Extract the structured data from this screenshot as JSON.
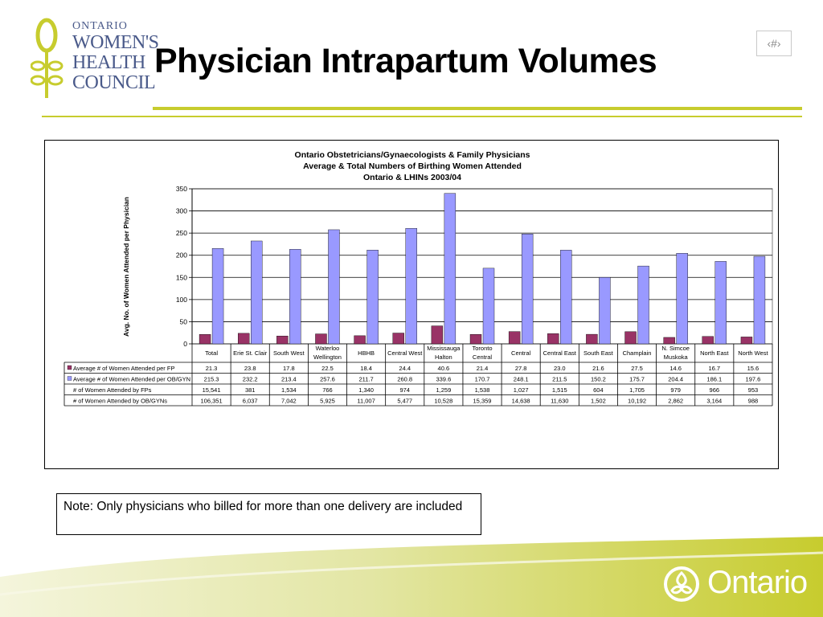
{
  "slide": {
    "title": "Physician Intrapartum Volumes",
    "page_number": "‹#›",
    "note": "Note:  Only physicians who billed for more than one delivery are included"
  },
  "logo": {
    "line1": "ONTARIO",
    "line2": "WOMEN'S",
    "line3": "HEALTH",
    "line4": "COUNCIL",
    "color": "#c7cc2e"
  },
  "footer": {
    "brand": "Ontario",
    "band_color": "#c7cc2e"
  },
  "chart_data": {
    "type": "bar",
    "title": [
      "Ontario Obstetricians/Gynaecologists & Family Physicians",
      "Average & Total Numbers of Birthing Women Attended",
      "Ontario & LHINs 2003/04"
    ],
    "xlabel": "",
    "ylabel": "Avg. No. of Women Attended per Physician",
    "ylim": [
      0,
      350
    ],
    "yticks": [
      0,
      50,
      100,
      150,
      200,
      250,
      300,
      350
    ],
    "grid": true,
    "categories": [
      [
        "Total"
      ],
      [
        "Erie St. Clair"
      ],
      [
        "South West"
      ],
      [
        "Waterloo",
        "Wellington"
      ],
      [
        "HBHB"
      ],
      [
        "Central West"
      ],
      [
        "Mississauga",
        "Halton"
      ],
      [
        "Toronto",
        "Central"
      ],
      [
        "Central"
      ],
      [
        "Central East"
      ],
      [
        "South East"
      ],
      [
        "Champlain"
      ],
      [
        "N. Simcoe",
        "Muskoka"
      ],
      [
        "North East"
      ],
      [
        "North West"
      ]
    ],
    "series": [
      {
        "name": "Average # of Women Attended per FP",
        "color": "#993366",
        "values": [
          21.3,
          23.8,
          17.8,
          22.5,
          18.4,
          24.4,
          40.6,
          21.4,
          27.8,
          23.0,
          21.6,
          27.5,
          14.6,
          16.7,
          15.6
        ],
        "labels": [
          "21.3",
          "23.8",
          "17.8",
          "22.5",
          "18.4",
          "24.4",
          "40.6",
          "21.4",
          "27.8",
          "23.0",
          "21.6",
          "27.5",
          "14.6",
          "16.7",
          "15.6"
        ]
      },
      {
        "name": "Average # of Women Attended per OB/GYN",
        "color": "#9999ff",
        "values": [
          215.3,
          232.2,
          213.4,
          257.6,
          211.7,
          260.8,
          339.6,
          170.7,
          248.1,
          211.5,
          150.2,
          175.7,
          204.4,
          186.1,
          197.6
        ],
        "labels": [
          "215.3",
          "232.2",
          "213.4",
          "257.6",
          "211.7",
          "260.8",
          "339.6",
          "170.7",
          "248.1",
          "211.5",
          "150.2",
          "175.7",
          "204.4",
          "186.1",
          "197.6"
        ]
      }
    ],
    "table_rows": [
      {
        "name": "# of Women Attended by FPs",
        "values": [
          "15,541",
          "381",
          "1,534",
          "766",
          "1,340",
          "974",
          "1,259",
          "1,538",
          "1,027",
          "1,515",
          "604",
          "1,705",
          "979",
          "966",
          "953"
        ]
      },
      {
        "name": "# of Women Attended by OB/GYNs",
        "values": [
          "106,351",
          "6,037",
          "7,042",
          "5,925",
          "11,007",
          "5,477",
          "10,528",
          "15,359",
          "14,638",
          "11,630",
          "1,502",
          "10,192",
          "2,862",
          "3,164",
          "988"
        ]
      }
    ]
  }
}
